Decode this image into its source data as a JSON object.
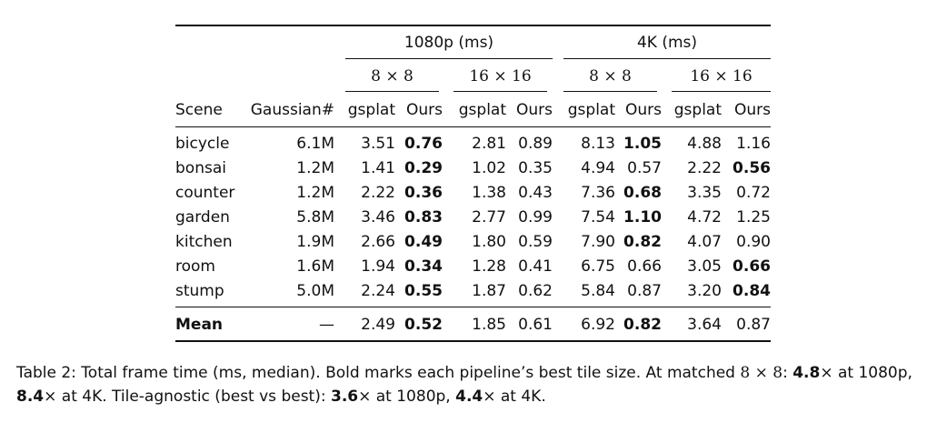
{
  "table": {
    "group_1080": "1080p (ms)",
    "group_4k": "4K (ms)",
    "tile_8": "8 × 8",
    "tile_16": "16 × 16",
    "col_scene": "Scene",
    "col_gauss": "Gaussian#",
    "col_gsplat": "gsplat",
    "col_ours": "Ours",
    "rows": [
      {
        "scene": "bicycle",
        "gauss": "6.1M",
        "v": [
          "3.51",
          "0.76",
          "2.81",
          "0.89",
          "8.13",
          "1.05",
          "4.88",
          "1.16"
        ],
        "bold": [
          1,
          5
        ]
      },
      {
        "scene": "bonsai",
        "gauss": "1.2M",
        "v": [
          "1.41",
          "0.29",
          "1.02",
          "0.35",
          "4.94",
          "0.57",
          "2.22",
          "0.56"
        ],
        "bold": [
          1,
          7
        ]
      },
      {
        "scene": "counter",
        "gauss": "1.2M",
        "v": [
          "2.22",
          "0.36",
          "1.38",
          "0.43",
          "7.36",
          "0.68",
          "3.35",
          "0.72"
        ],
        "bold": [
          1,
          5
        ]
      },
      {
        "scene": "garden",
        "gauss": "5.8M",
        "v": [
          "3.46",
          "0.83",
          "2.77",
          "0.99",
          "7.54",
          "1.10",
          "4.72",
          "1.25"
        ],
        "bold": [
          1,
          5
        ]
      },
      {
        "scene": "kitchen",
        "gauss": "1.9M",
        "v": [
          "2.66",
          "0.49",
          "1.80",
          "0.59",
          "7.90",
          "0.82",
          "4.07",
          "0.90"
        ],
        "bold": [
          1,
          5
        ]
      },
      {
        "scene": "room",
        "gauss": "1.6M",
        "v": [
          "1.94",
          "0.34",
          "1.28",
          "0.41",
          "6.75",
          "0.66",
          "3.05",
          "0.66"
        ],
        "bold": [
          1,
          7
        ]
      },
      {
        "scene": "stump",
        "gauss": "5.0M",
        "v": [
          "2.24",
          "0.55",
          "1.87",
          "0.62",
          "5.84",
          "0.87",
          "3.20",
          "0.84"
        ],
        "bold": [
          1,
          7
        ]
      }
    ],
    "mean": {
      "scene": "Mean",
      "gauss": "—",
      "v": [
        "2.49",
        "0.52",
        "1.85",
        "0.61",
        "6.92",
        "0.82",
        "3.64",
        "0.87"
      ],
      "bold": [
        1,
        5
      ]
    }
  },
  "caption": {
    "p1": "Table 2: Total frame time (ms, median). Bold marks each pipeline’s best tile size. At matched ",
    "p2": "8 × 8",
    "p3": ": ",
    "p4": "4.8",
    "p5": "× at 1080p, ",
    "p6": "8.4",
    "p7": "× at 4K. Tile-agnostic (best vs best): ",
    "p8": "3.6",
    "p9": "× at 1080p, ",
    "p10": "4.4",
    "p11": "× at 4K."
  }
}
